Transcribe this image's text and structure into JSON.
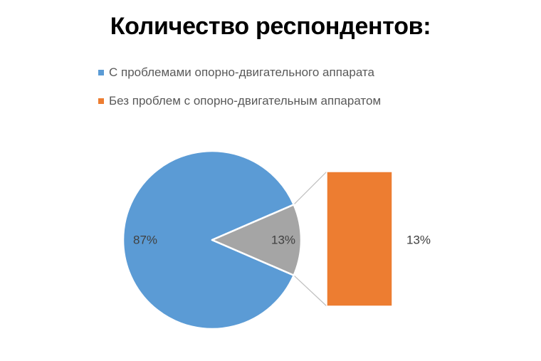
{
  "chart_data": {
    "type": "pie",
    "subtype": "bar-of-pie",
    "title": "Количество респондентов:",
    "legend_position": "top-left",
    "categories": [
      "С проблемами опорно-двигательного аппарата",
      "Без проблем с опорно-двигательным аппаратом"
    ],
    "values": [
      87,
      13
    ],
    "labels": [
      "87%",
      "13%"
    ],
    "secondary_labels": [
      "13%"
    ],
    "grid": false,
    "colors": {
      "primary_series": "#5b9bd5",
      "secondary_series": "#ed7d31",
      "split_slice": "#a5a5a5",
      "connector": "#bfbfbf"
    }
  }
}
